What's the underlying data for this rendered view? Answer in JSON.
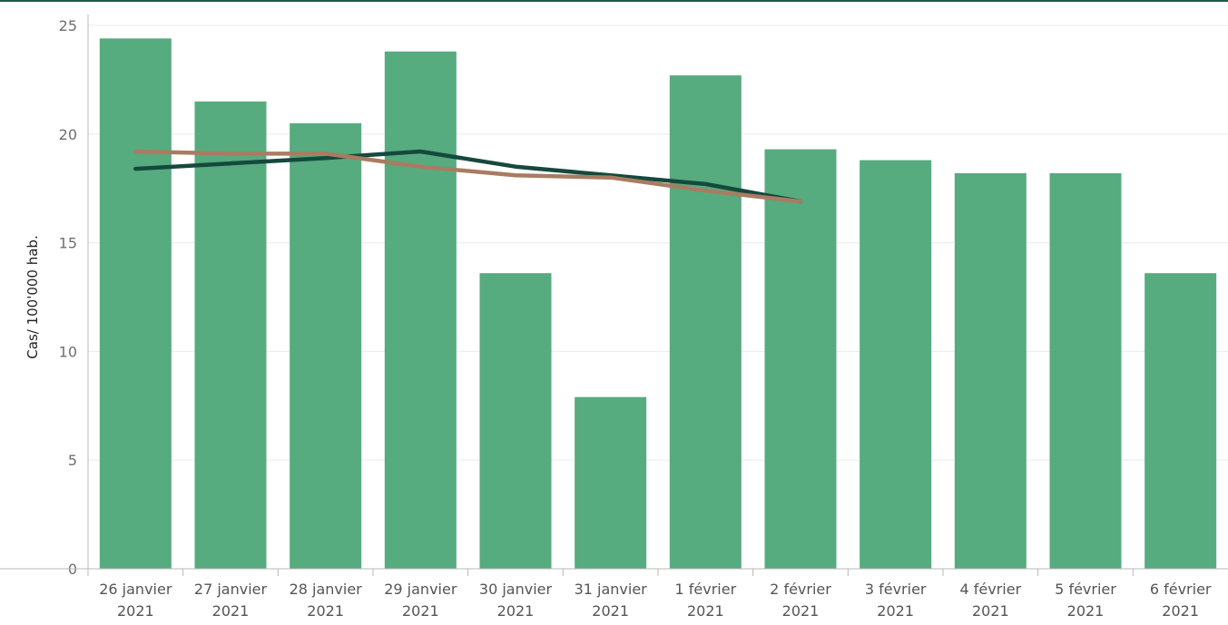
{
  "colors": {
    "top_rule": "#1f5a4a",
    "bar": "#56ab7f",
    "grid": "#ececec",
    "axis": "#b8b8b8",
    "series_colors": [
      "#16493d",
      "#a97c62"
    ]
  },
  "chart_data": {
    "type": "bar",
    "title": "",
    "xlabel": "",
    "ylabel": "Cas/ 100'000 hab.",
    "ylim": [
      0,
      25
    ],
    "yticks": [
      0,
      5,
      10,
      15,
      20,
      25
    ],
    "grid": true,
    "categories": [
      [
        "26 janvier",
        "2021"
      ],
      [
        "27 janvier",
        "2021"
      ],
      [
        "28 janvier",
        "2021"
      ],
      [
        "29 janvier",
        "2021"
      ],
      [
        "30 janvier",
        "2021"
      ],
      [
        "31 janvier",
        "2021"
      ],
      [
        "1 février",
        "2021"
      ],
      [
        "2 février",
        "2021"
      ],
      [
        "3 février",
        "2021"
      ],
      [
        "4 février",
        "2021"
      ],
      [
        "5 février",
        "2021"
      ],
      [
        "6 février",
        "2021"
      ]
    ],
    "values": [
      24.4,
      21.5,
      20.5,
      23.8,
      13.6,
      7.9,
      22.7,
      19.3,
      18.8,
      18.2,
      18.2,
      13.6
    ],
    "lines": [
      {
        "type": "line",
        "values": [
          18.4,
          null,
          18.9,
          19.2,
          18.5,
          18.1,
          17.7,
          16.9,
          null,
          null,
          null,
          null
        ]
      },
      {
        "type": "line",
        "values": [
          19.2,
          19.1,
          19.1,
          18.5,
          18.1,
          18.0,
          17.4,
          16.9,
          null,
          null,
          null,
          null
        ]
      }
    ]
  }
}
